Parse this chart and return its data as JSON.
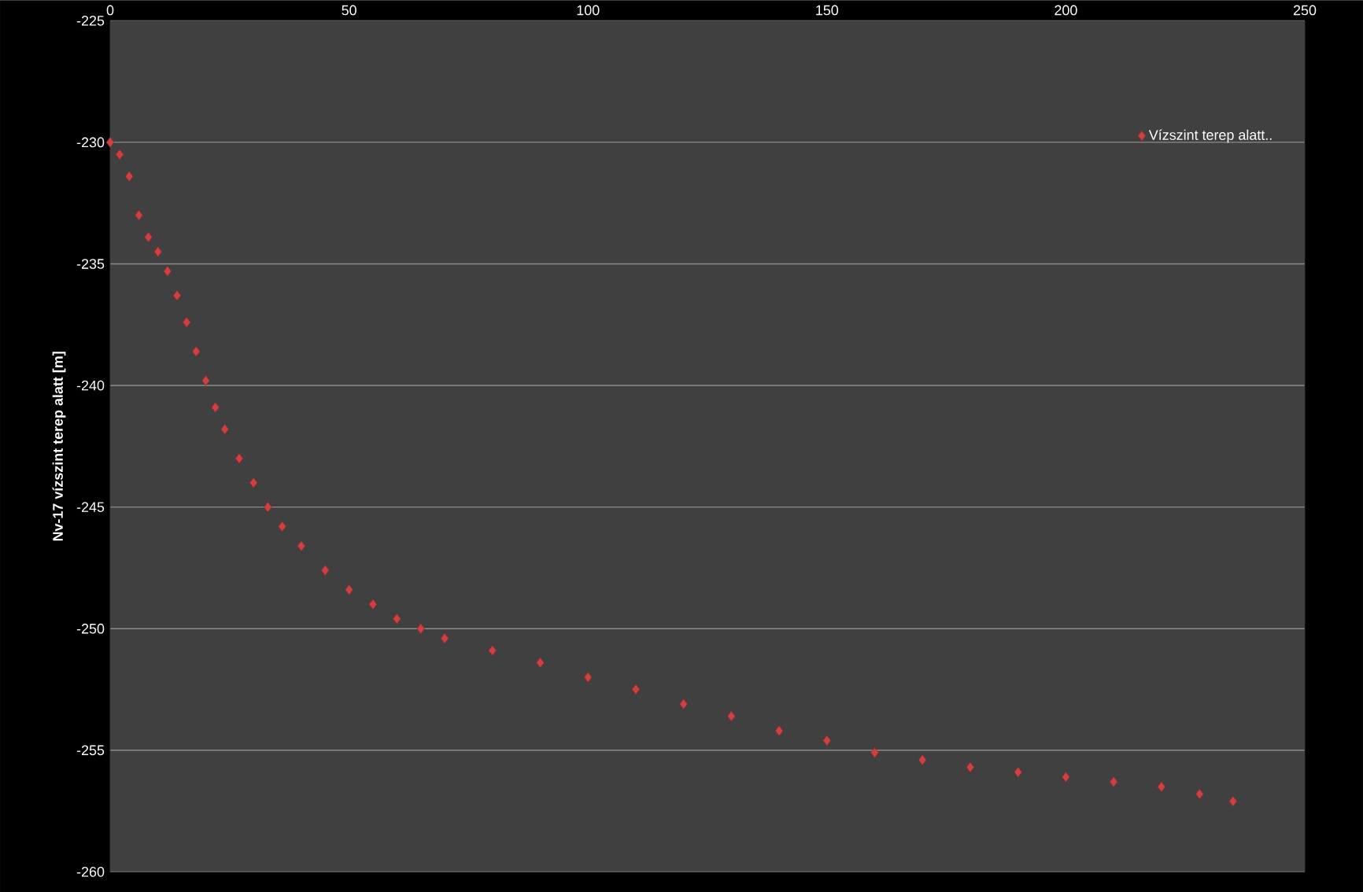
{
  "chart_data": {
    "type": "scatter",
    "ylabel": "Nv-17 vízszint terep alatt [m]",
    "xlim": [
      0,
      250
    ],
    "xticks": [
      0,
      50,
      100,
      150,
      200,
      250
    ],
    "ylim": [
      -260,
      -225
    ],
    "yticks": [
      -260,
      -255,
      -250,
      -245,
      -240,
      -235,
      -230,
      -225
    ],
    "grid": "y",
    "legend": "top right",
    "marker": "diamond",
    "series": [
      {
        "name": "Vízszint terep alatt..",
        "color": "#d04040",
        "x": [
          0,
          2,
          4,
          6,
          8,
          10,
          12,
          14,
          16,
          18,
          20,
          22,
          24,
          27,
          30,
          33,
          36,
          40,
          45,
          50,
          55,
          60,
          65,
          70,
          80,
          90,
          100,
          110,
          120,
          130,
          140,
          150,
          160,
          170,
          180,
          190,
          200,
          210,
          220,
          228,
          235
        ],
        "values": [
          -230,
          -230.5,
          -231.4,
          -233,
          -233.9,
          -234.5,
          -235.3,
          -236.3,
          -237.4,
          -238.6,
          -239.8,
          -240.9,
          -241.8,
          -243,
          -244,
          -245,
          -245.8,
          -246.6,
          -247.6,
          -248.4,
          -249.0,
          -249.6,
          -250.0,
          -250.4,
          -250.9,
          -251.4,
          -252.0,
          -252.5,
          -253.1,
          -253.6,
          -254.2,
          -254.6,
          -255.1,
          -255.4,
          -255.7,
          -255.9,
          -256.1,
          -256.3,
          -256.5,
          -256.8,
          -257.1
        ]
      }
    ]
  }
}
